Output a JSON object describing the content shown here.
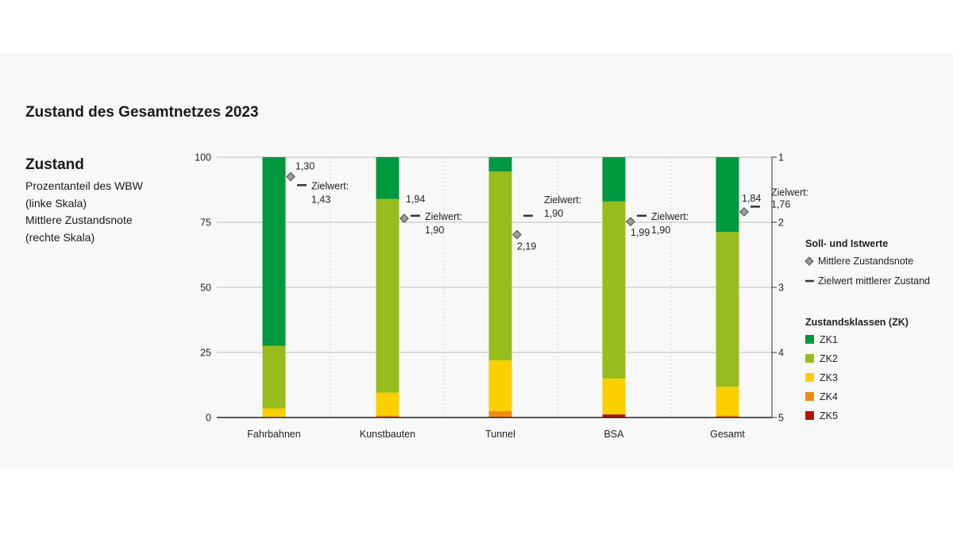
{
  "title": "Zustand des Gesamtnetzes 2023",
  "sidebar": {
    "heading": "Zustand",
    "lines": [
      "Prozentanteil des WBW",
      "(linke Skala)",
      "Mittlere Zustandsnote",
      "(rechte Skala)"
    ]
  },
  "legend": {
    "marker_heading": "Soll- und Istwerte",
    "marker_items": [
      {
        "label": "Mittlere Zustandsnote",
        "symbol": "diamond"
      },
      {
        "label": "Zielwert mittlerer Zustand",
        "symbol": "dash"
      }
    ],
    "class_heading": "Zustandsklassen (ZK)"
  },
  "chart_data": {
    "type": "bar",
    "stacked": true,
    "categories": [
      "Fahrbahnen",
      "Kunstbauten",
      "Tunnel",
      "BSA",
      "Gesamt"
    ],
    "left_axis": {
      "ticks": [
        "0",
        "25",
        "50",
        "75",
        "100"
      ],
      "ylim": [
        0,
        100
      ]
    },
    "right_axis": {
      "ticks": [
        "1",
        "2",
        "3",
        "4",
        "5"
      ],
      "ylim": [
        5,
        1
      ]
    },
    "grid": true,
    "legend_position": "right",
    "series": [
      {
        "name": "ZK5",
        "color": "#b5140a",
        "values": [
          0,
          0,
          0,
          1.2,
          0
        ]
      },
      {
        "name": "ZK4",
        "color": "#ef8c10",
        "values": [
          0,
          0.8,
          2.5,
          0,
          0.8
        ]
      },
      {
        "name": "ZK3",
        "color": "#fbcf00",
        "values": [
          3.5,
          8.8,
          19.5,
          13.8,
          11.0
        ]
      },
      {
        "name": "ZK2",
        "color": "#96bd1d",
        "values": [
          24.0,
          74.4,
          72.5,
          68.0,
          59.5
        ]
      },
      {
        "name": "ZK1",
        "color": "#00983f",
        "values": [
          72.5,
          16.0,
          5.5,
          17.0,
          28.7
        ]
      }
    ],
    "marker_series": [
      {
        "kind": "mean_grade",
        "values": [
          1.3,
          1.94,
          2.19,
          1.99,
          1.84
        ],
        "labels": [
          "1,30",
          "1,94",
          "2,19",
          "1,99",
          "1,84"
        ]
      },
      {
        "kind": "target_grade",
        "values": [
          1.43,
          1.9,
          1.9,
          1.9,
          1.76
        ],
        "labels": [
          "1,43",
          "1,90",
          "1,90",
          "1,90",
          "1,76"
        ],
        "prefix": "Zielwert:"
      }
    ]
  }
}
